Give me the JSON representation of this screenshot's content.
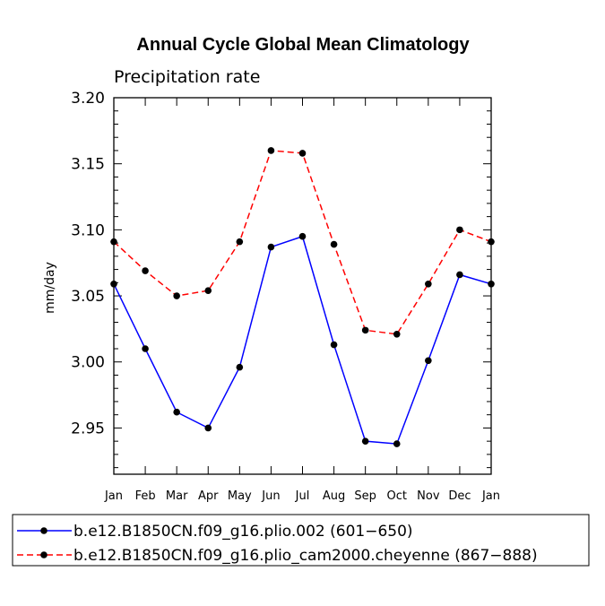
{
  "chart_data": {
    "type": "line",
    "title": "Annual Cycle Global Mean Climatology",
    "subtitle": "Precipitation rate",
    "xlabel": "",
    "ylabel": "mm/day",
    "categories": [
      "Jan",
      "Feb",
      "Mar",
      "Apr",
      "May",
      "Jun",
      "Jul",
      "Aug",
      "Sep",
      "Oct",
      "Nov",
      "Dec",
      "Jan"
    ],
    "ylim": [
      2.915,
      3.2
    ],
    "yticks": [
      "3.20",
      "3.15",
      "3.10",
      "3.05",
      "3.00",
      "2.95"
    ],
    "ytick_values": [
      3.2,
      3.15,
      3.1,
      3.05,
      3.0,
      2.95
    ],
    "grid": false,
    "legend_position": "bottom",
    "series": [
      {
        "name": "b.e12.B1850CN.f09_g16.plio.002 (601−650)",
        "color": "#0000ff",
        "dash": "solid",
        "values": [
          3.059,
          3.01,
          2.962,
          2.95,
          2.996,
          3.087,
          3.095,
          3.013,
          2.94,
          2.938,
          3.001,
          3.066,
          3.059
        ]
      },
      {
        "name": "b.e12.B1850CN.f09_g16.plio_cam2000.cheyenne (867−888)",
        "color": "#ff0000",
        "dash": "dashed",
        "values": [
          3.091,
          3.069,
          3.05,
          3.054,
          3.091,
          3.16,
          3.158,
          3.089,
          3.024,
          3.021,
          3.059,
          3.1,
          3.091
        ]
      }
    ]
  }
}
